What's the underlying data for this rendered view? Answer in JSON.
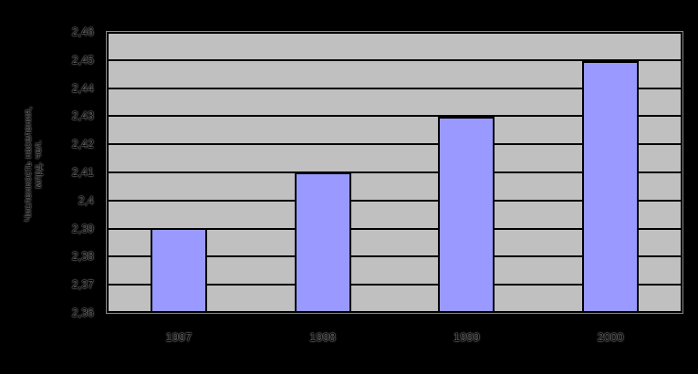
{
  "chart_data": {
    "type": "bar",
    "title": "",
    "categories": [
      "1997",
      "1998",
      "1999",
      "2000"
    ],
    "values": [
      2.39,
      2.41,
      2.43,
      2.45
    ],
    "xlabel": "",
    "ylabel_line1": "Численность населения,",
    "ylabel_line2": "млрд. чел.",
    "ylim": [
      2.36,
      2.46
    ],
    "ytick_step": 0.01,
    "ytick_labels_top_to_bottom": [
      "2,46",
      "2,45",
      "2,44",
      "2,43",
      "2,42",
      "2,41",
      "2,4",
      "2,39",
      "2,38",
      "2,37",
      "2,36"
    ],
    "grid": "horizontal",
    "legend": "none",
    "colors": {
      "page_background": "#000000",
      "plot_background": "#c0c0c0",
      "bar_fill": "#9999ff",
      "bar_border": "#000000",
      "gridline": "#000000",
      "text": "#000000"
    }
  }
}
